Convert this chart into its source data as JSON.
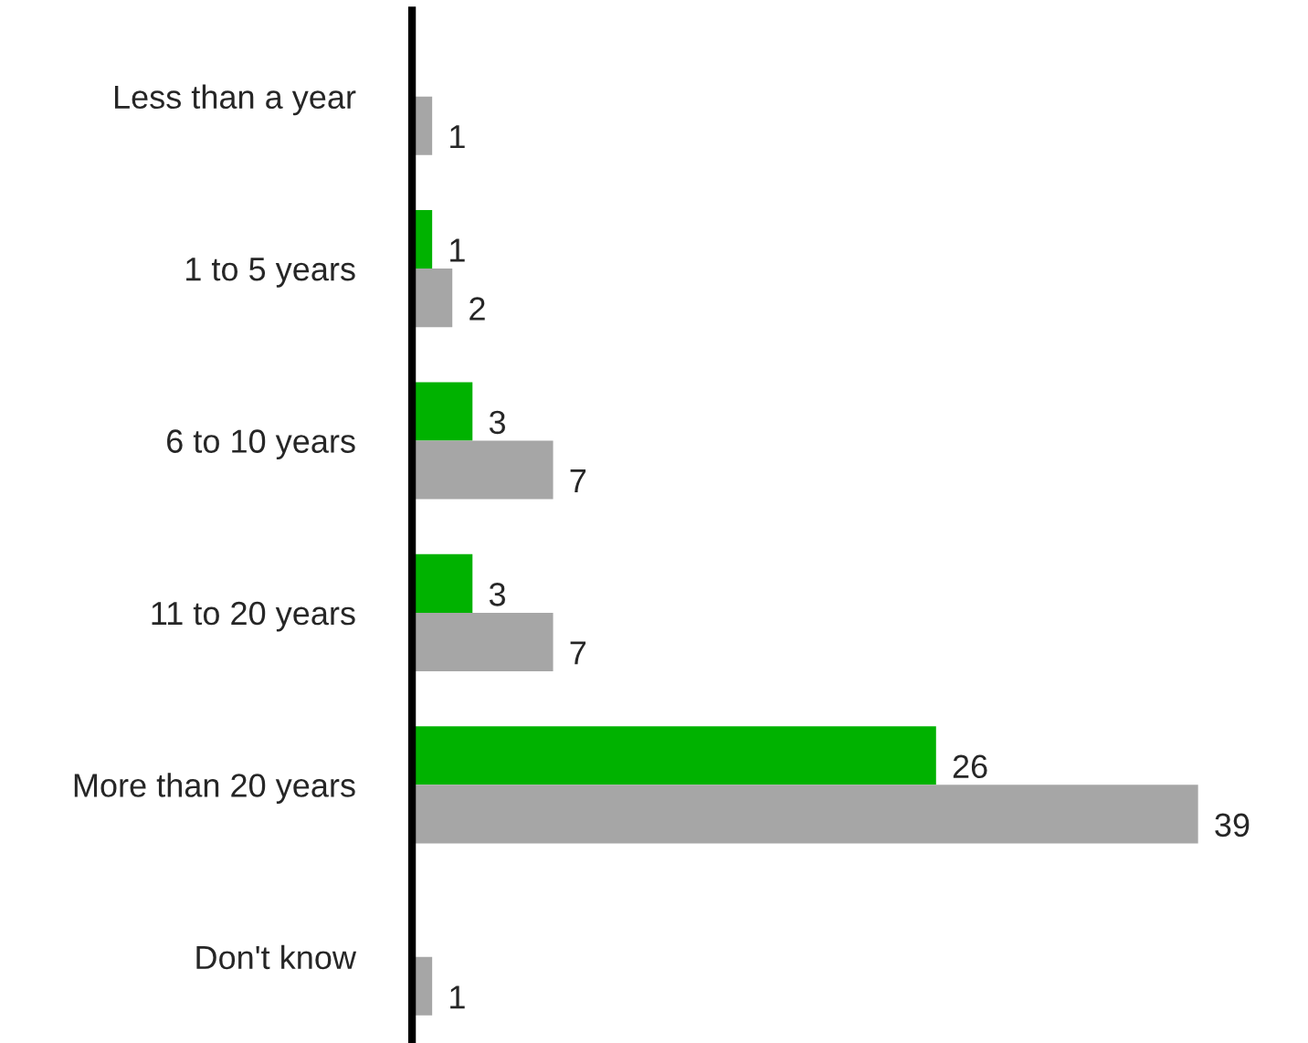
{
  "chart_data": {
    "type": "bar",
    "orientation": "horizontal",
    "categories": [
      "Less than a year",
      "1 to 5 years",
      "6 to 10 years",
      "11 to 20 years",
      "More than 20 years",
      "Don't know"
    ],
    "series": [
      {
        "color": "#00b200",
        "values": [
          null,
          1,
          3,
          3,
          26,
          null
        ]
      },
      {
        "color": "#a6a6a6",
        "values": [
          1,
          2,
          7,
          7,
          39,
          1
        ]
      }
    ],
    "data_labels": true,
    "grid": false,
    "legend": false
  }
}
